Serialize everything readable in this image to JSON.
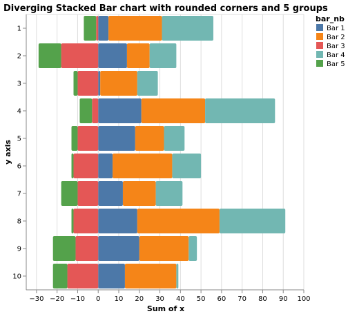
{
  "chart_data": {
    "type": "bar",
    "orientation": "horizontal",
    "stacking": "diverging",
    "title": "Diverging Stacked Bar chart with rounded corners and 5 groups",
    "xlabel": "Sum of x",
    "ylabel": "y axis",
    "xlim": [
      -35,
      100
    ],
    "x_ticks": [
      -30,
      -20,
      -10,
      0,
      10,
      20,
      30,
      40,
      50,
      60,
      70,
      80,
      90,
      100
    ],
    "categories": [
      "1",
      "2",
      "3",
      "4",
      "5",
      "6",
      "7",
      "8",
      "9",
      "10"
    ],
    "grid": true,
    "legend": {
      "title": "bar_nb",
      "position": "right"
    },
    "series": [
      {
        "name": "Bar 1",
        "color": "#4c78a8",
        "values": [
          5,
          14,
          1,
          21,
          18,
          7,
          12,
          19,
          20,
          13
        ]
      },
      {
        "name": "Bar 2",
        "color": "#f58518",
        "values": [
          26,
          11,
          18,
          31,
          14,
          29,
          16,
          40,
          24,
          25
        ]
      },
      {
        "name": "Bar 3",
        "color": "#e45756",
        "values": [
          -1,
          -18,
          -10,
          -3,
          -10,
          -12,
          -10,
          -12,
          -11,
          -15
        ]
      },
      {
        "name": "Bar 4",
        "color": "#72b7b2",
        "values": [
          25,
          13,
          10,
          34,
          10,
          14,
          13,
          32,
          4,
          1
        ]
      },
      {
        "name": "Bar 5",
        "color": "#54a24b",
        "values": [
          -6,
          -11,
          -2,
          -6,
          -3,
          -1,
          -8,
          -1,
          -11,
          -7
        ]
      }
    ]
  }
}
